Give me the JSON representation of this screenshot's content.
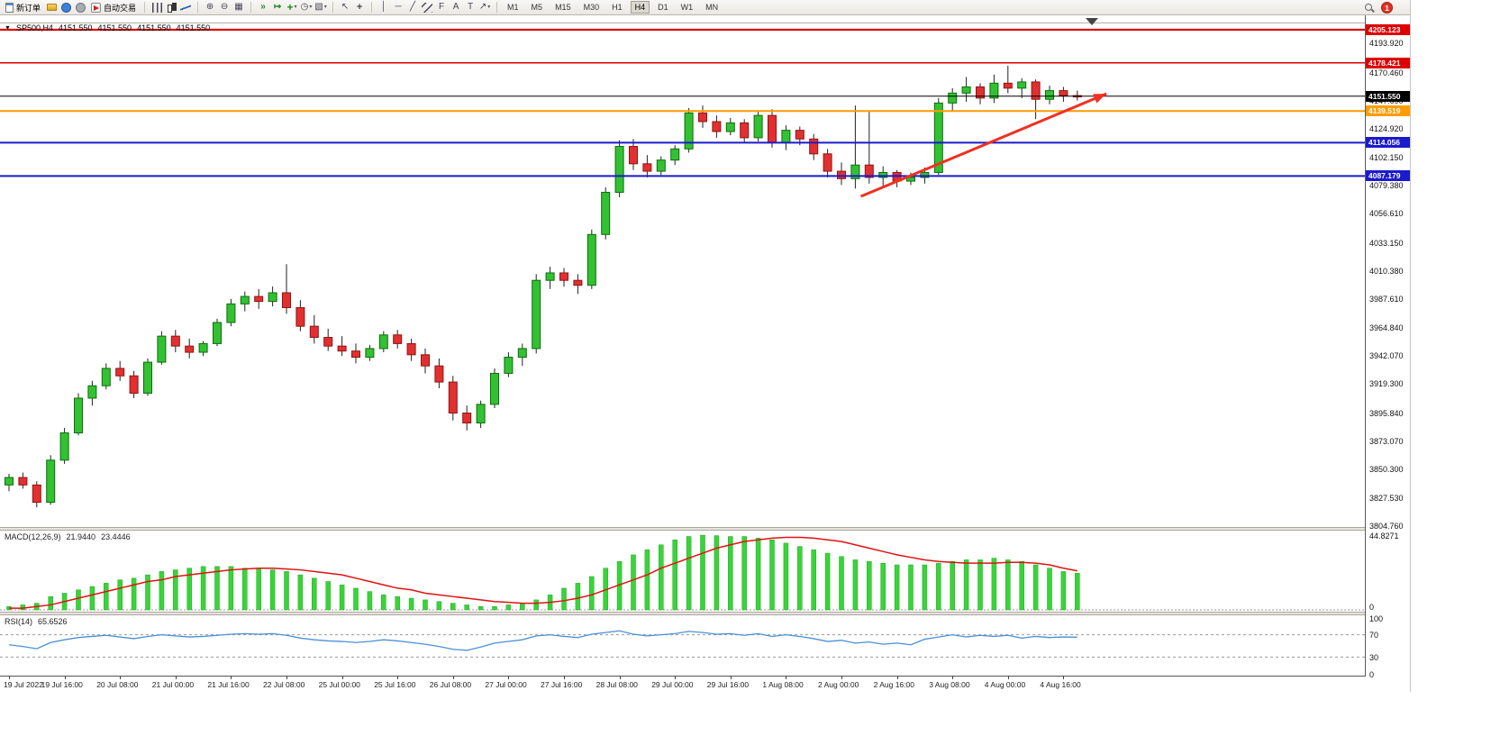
{
  "toolbar": {
    "new_order": "新订单",
    "autotrading": "自动交易",
    "timeframes": [
      "M1",
      "M5",
      "M15",
      "M30",
      "H1",
      "H4",
      "D1",
      "W1",
      "MN"
    ],
    "active_timeframe": "H4",
    "notification_count": "1",
    "icons": [
      "new-order-icon",
      "charts-icon",
      "community-icon",
      "alerts-icon",
      "autotrading-icon",
      "bar-chart-icon",
      "candlestick-icon",
      "line-chart-icon",
      "zoom-in-icon",
      "zoom-out-icon",
      "tile-windows-icon",
      "auto-scroll-icon",
      "chart-shift-icon",
      "indicators-icon",
      "periods-icon",
      "templates-icon",
      "cursor-icon",
      "crosshair-icon",
      "vertical-line-icon",
      "horizontal-line-icon",
      "trendline-icon",
      "channel-icon",
      "fibonacci-icon",
      "text-icon",
      "label-icon",
      "arrows-icon",
      "search-icon",
      "notification-badge"
    ]
  },
  "chart": {
    "symbol_label": "SP500,H4",
    "ohlc": [
      "4151.550",
      "4151.550",
      "4151.550",
      "4151.550"
    ],
    "price_axis_ticks": [
      "4193.920",
      "4170.460",
      "4147.690",
      "4124.920",
      "4102.150",
      "4079.380",
      "4056.610",
      "4033.150",
      "4010.380",
      "3987.610",
      "3964.840",
      "3942.070",
      "3919.300",
      "3895.840",
      "3873.070",
      "3850.300",
      "3827.530",
      "3804.760"
    ],
    "price_range": {
      "top": 4216.0,
      "bottom": 3804.1
    },
    "levels": [
      {
        "label": "4205.123",
        "value": 4205.123,
        "color": "#dd0000",
        "width": 2.2,
        "current": false
      },
      {
        "label": "4178.421",
        "value": 4178.421,
        "color": "#dd0000",
        "width": 1.5,
        "current": false
      },
      {
        "label": "4151.550",
        "value": 4151.55,
        "color": "#000000",
        "width": 1,
        "current": true
      },
      {
        "label": "4139.519",
        "value": 4139.519,
        "color": "#ff9c00",
        "width": 2,
        "current": false
      },
      {
        "label": "4114.056",
        "value": 4114.056,
        "color": "#1b1bcc",
        "width": 2,
        "current": false
      },
      {
        "label": "4087.179",
        "value": 4087.179,
        "color": "#1b1bcc",
        "width": 2,
        "current": false
      }
    ],
    "trend_arrow": {
      "color": "#f03022",
      "from": {
        "candle": 61.4,
        "price": 4070.7
      },
      "to": {
        "candle": 79.1,
        "price": 4153.5
      }
    },
    "colors": {
      "up": "#33c133",
      "up_border": "#0b6e0b",
      "down": "#e23030",
      "down_border": "#8f1414",
      "wick": "#222222",
      "macd_bar": "#39d439",
      "macd_bar_border": "#23a523",
      "macd_signal": "#e01212",
      "rsi_line": "#4a90d8"
    }
  },
  "chart_data": {
    "type": "candlestick",
    "symbol": "SP500",
    "timeframe": "H4",
    "background": "#ffffff",
    "grid": false,
    "x_labels": [
      "19 Jul 2022",
      "19 Jul 16:00",
      "20 Jul 08:00",
      "21 Jul 00:00",
      "21 Jul 16:00",
      "22 Jul 08:00",
      "25 Jul 00:00",
      "25 Jul 16:00",
      "26 Jul 08:00",
      "27 Jul 00:00",
      "27 Jul 16:00",
      "28 Jul 08:00",
      "29 Jul 00:00",
      "29 Jul 16:00",
      "1 Aug 08:00",
      "2 Aug 00:00",
      "2 Aug 16:00",
      "3 Aug 08:00",
      "4 Aug 00:00",
      "4 Aug 16:00"
    ],
    "candles_per_label": 4,
    "candles_ohlc": [
      [
        3838,
        3847,
        3833,
        3844
      ],
      [
        3844,
        3848,
        3835,
        3838
      ],
      [
        3838,
        3841,
        3820,
        3824
      ],
      [
        3824,
        3862,
        3822,
        3858
      ],
      [
        3858,
        3884,
        3855,
        3880
      ],
      [
        3880,
        3912,
        3878,
        3908
      ],
      [
        3908,
        3922,
        3902,
        3918
      ],
      [
        3918,
        3936,
        3915,
        3932
      ],
      [
        3932,
        3938,
        3922,
        3926
      ],
      [
        3926,
        3930,
        3908,
        3912
      ],
      [
        3912,
        3940,
        3910,
        3937
      ],
      [
        3937,
        3962,
        3935,
        3958
      ],
      [
        3958,
        3963,
        3945,
        3950
      ],
      [
        3950,
        3956,
        3940,
        3945
      ],
      [
        3945,
        3954,
        3942,
        3952
      ],
      [
        3952,
        3972,
        3950,
        3969
      ],
      [
        3969,
        3988,
        3966,
        3984
      ],
      [
        3984,
        3994,
        3978,
        3990
      ],
      [
        3990,
        3996,
        3980,
        3986
      ],
      [
        3986,
        3998,
        3982,
        3993
      ],
      [
        3993,
        4016,
        3976,
        3981
      ],
      [
        3981,
        3987,
        3962,
        3966
      ],
      [
        3966,
        3975,
        3952,
        3957
      ],
      [
        3957,
        3964,
        3946,
        3950
      ],
      [
        3950,
        3958,
        3942,
        3946
      ],
      [
        3946,
        3952,
        3936,
        3941
      ],
      [
        3941,
        3951,
        3938,
        3948
      ],
      [
        3948,
        3962,
        3945,
        3959
      ],
      [
        3959,
        3963,
        3948,
        3952
      ],
      [
        3952,
        3956,
        3938,
        3943
      ],
      [
        3943,
        3948,
        3928,
        3934
      ],
      [
        3934,
        3940,
        3916,
        3921
      ],
      [
        3921,
        3926,
        3890,
        3896
      ],
      [
        3896,
        3902,
        3882,
        3888
      ],
      [
        3888,
        3906,
        3884,
        3903
      ],
      [
        3903,
        3932,
        3900,
        3928
      ],
      [
        3928,
        3945,
        3925,
        3941
      ],
      [
        3941,
        3952,
        3934,
        3948
      ],
      [
        3948,
        4008,
        3944,
        4003
      ],
      [
        4003,
        4014,
        3996,
        4009
      ],
      [
        4009,
        4013,
        3998,
        4003
      ],
      [
        4003,
        4008,
        3992,
        3999
      ],
      [
        3999,
        4044,
        3996,
        4040
      ],
      [
        4040,
        4078,
        4036,
        4074
      ],
      [
        4074,
        4116,
        4070,
        4111
      ],
      [
        4111,
        4117,
        4092,
        4097
      ],
      [
        4097,
        4104,
        4086,
        4091
      ],
      [
        4091,
        4103,
        4088,
        4100
      ],
      [
        4100,
        4112,
        4096,
        4109
      ],
      [
        4109,
        4142,
        4106,
        4138
      ],
      [
        4138,
        4144,
        4126,
        4131
      ],
      [
        4131,
        4136,
        4118,
        4123
      ],
      [
        4123,
        4134,
        4120,
        4130
      ],
      [
        4130,
        4133,
        4114,
        4118
      ],
      [
        4118,
        4140,
        4115,
        4136
      ],
      [
        4136,
        4141,
        4110,
        4114
      ],
      [
        4114,
        4128,
        4108,
        4124
      ],
      [
        4124,
        4127,
        4112,
        4117
      ],
      [
        4117,
        4121,
        4100,
        4105
      ],
      [
        4105,
        4109,
        4086,
        4091
      ],
      [
        4091,
        4098,
        4080,
        4085
      ],
      [
        4085,
        4144,
        4077,
        4096
      ],
      [
        4096,
        4140,
        4081,
        4086
      ],
      [
        4086,
        4095,
        4079,
        4090
      ],
      [
        4090,
        4092,
        4078,
        4083
      ],
      [
        4083,
        4090,
        4080,
        4086
      ],
      [
        4086,
        4094,
        4081,
        4090
      ],
      [
        4090,
        4150,
        4088,
        4146
      ],
      [
        4146,
        4158,
        4140,
        4154
      ],
      [
        4154,
        4167,
        4147,
        4159
      ],
      [
        4159,
        4162,
        4145,
        4150
      ],
      [
        4150,
        4169,
        4146,
        4162
      ],
      [
        4162,
        4176,
        4154,
        4158
      ],
      [
        4158,
        4166,
        4150,
        4163
      ],
      [
        4163,
        4165,
        4133,
        4149
      ],
      [
        4149,
        4160,
        4145,
        4156
      ],
      [
        4156,
        4159,
        4147,
        4152
      ],
      [
        4152,
        4156,
        4148,
        4151.55
      ]
    ],
    "indicators": {
      "macd": {
        "name": "MACD(12,26,9)",
        "value_main": "21.9440",
        "value_signal": "23.4446",
        "axis_max": "44.8271",
        "axis_min": "0",
        "histogram": [
          2,
          3,
          4,
          8,
          10,
          12,
          14,
          16,
          18,
          19,
          21,
          23,
          24,
          25,
          26,
          26,
          26,
          25,
          25,
          24,
          23,
          21,
          19,
          17,
          15,
          13,
          11,
          9,
          8,
          7,
          6,
          5,
          4,
          3,
          2,
          2,
          3,
          4,
          6,
          9,
          13,
          16,
          20,
          25,
          29,
          33,
          36,
          39,
          42,
          44,
          44.8,
          44.5,
          44,
          44,
          43,
          42,
          40,
          38,
          36,
          34,
          32,
          30,
          29,
          28,
          27,
          27,
          27,
          28,
          29,
          30,
          30,
          31,
          30,
          29,
          27,
          25,
          23,
          22
        ],
        "signal": [
          1,
          1,
          2,
          3,
          5,
          7,
          9,
          11,
          13,
          15,
          17,
          18,
          20,
          21,
          22,
          23,
          24,
          24.5,
          25,
          25,
          24.5,
          24,
          23,
          22,
          21,
          19,
          17,
          15,
          13,
          12,
          10,
          9,
          8,
          7,
          6,
          5,
          4.5,
          4,
          4,
          4.5,
          5.5,
          7,
          9,
          12,
          15,
          18,
          21,
          25,
          28,
          31,
          34,
          37,
          39,
          41,
          42,
          43,
          43.5,
          43.5,
          43,
          42,
          41,
          39,
          37,
          35,
          33,
          31.5,
          30,
          29,
          28.5,
          28,
          28,
          28,
          28.5,
          28.5,
          28,
          27,
          25,
          23.4
        ]
      },
      "rsi": {
        "name": "RSI(14)",
        "value": "65.6526",
        "axis_ticks": [
          "100",
          "70",
          "30",
          "0"
        ],
        "levels": [
          70,
          30
        ],
        "series": [
          52,
          49,
          45,
          56,
          61,
          65,
          67,
          69,
          66,
          63,
          67,
          70,
          68,
          66,
          67,
          69,
          71,
          72,
          71,
          72,
          69,
          64,
          61,
          59,
          58,
          56,
          58,
          61,
          59,
          56,
          53,
          49,
          44,
          42,
          48,
          55,
          58,
          61,
          68,
          70,
          67,
          65,
          71,
          74,
          77,
          71,
          68,
          70,
          72,
          76,
          74,
          71,
          72,
          69,
          72,
          67,
          70,
          67,
          63,
          58,
          60,
          55,
          57,
          53,
          55,
          52,
          62,
          66,
          70,
          66,
          69,
          67,
          69,
          64,
          67,
          65,
          66,
          65.65
        ]
      }
    }
  }
}
